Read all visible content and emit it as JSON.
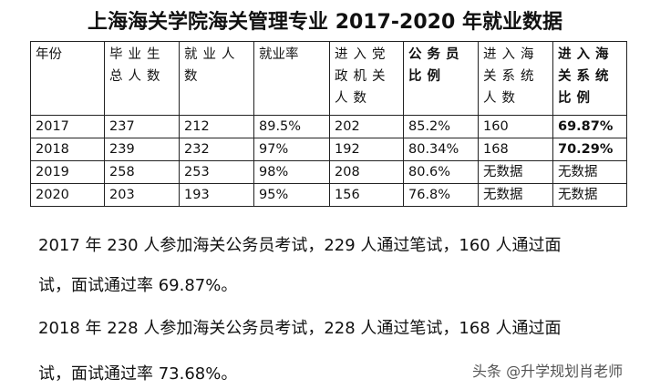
{
  "title": "上海海关学院海关管理专业 2017-2020 年就业数据",
  "table": {
    "headers": [
      "年份",
      "毕业生总人数",
      "就业人数",
      "就业率",
      "进入党政机关人数",
      "公务员比例",
      "进入海关系统人数",
      "进入海关系统比例"
    ],
    "rows": [
      [
        "2017",
        "237",
        "212",
        "89.5%",
        "202",
        "85.2%",
        "160",
        "69.87%"
      ],
      [
        "2018",
        "239",
        "232",
        "97%",
        "192",
        "80.34%",
        "168",
        "70.29%"
      ],
      [
        "2019",
        "258",
        "253",
        "98%",
        "208",
        "80.6%",
        "无数据",
        "无数据"
      ],
      [
        "2020",
        "203",
        "193",
        "95%",
        "156",
        "76.8%",
        "无数据",
        "无数据"
      ]
    ]
  },
  "paragraphs": [
    "2017 年 230 人参加海关公务员考试，229 人通过笔试，160 人通过面",
    "试，面试通过率 69.87%。",
    "2018 年 228 人参加海关公务员考试，228 人通过笔试，168 人通过面",
    "试，面试通过率 73.68%。"
  ],
  "watermark": "头条 @升学规划肖老师"
}
